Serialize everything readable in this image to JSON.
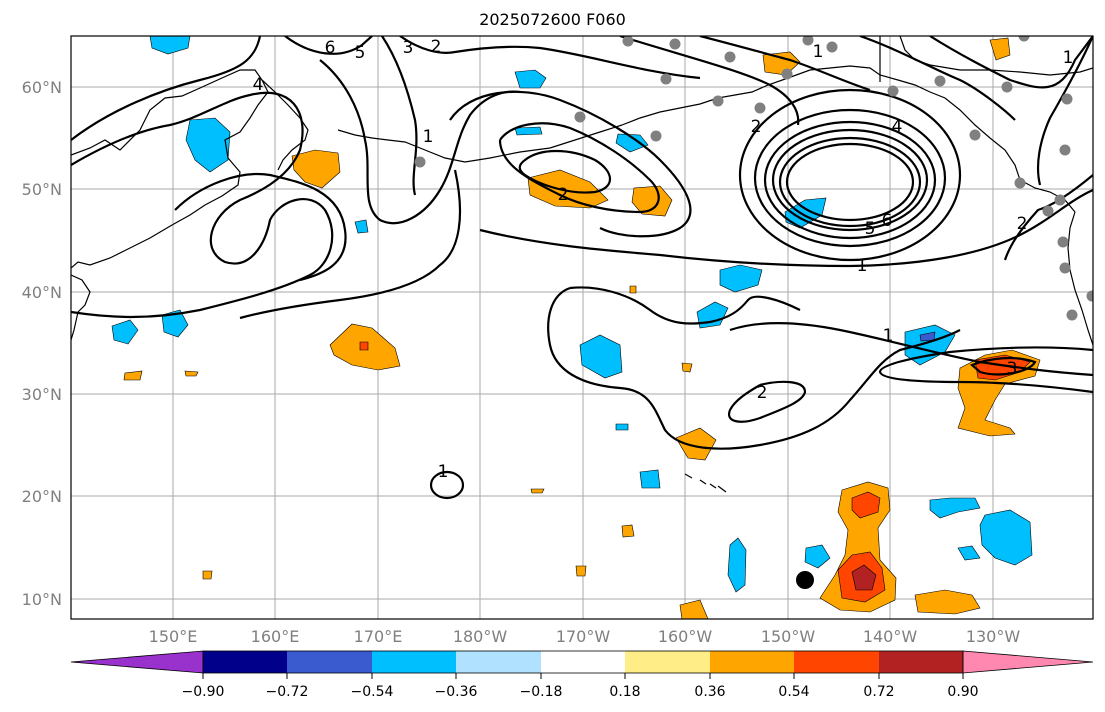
{
  "title": "2025072600 F060",
  "lat_labels": [
    "60°N",
    "50°N",
    "40°N",
    "30°N",
    "20°N",
    "10°N"
  ],
  "lon_labels": [
    "150°E",
    "160°E",
    "170°E",
    "180°W",
    "170°W",
    "160°W",
    "150°W",
    "140°W",
    "130°W"
  ],
  "colorbar": {
    "colors": [
      "#9932cc",
      "#00008b",
      "#3a5bd0",
      "#00bfff",
      "#b0e2ff",
      "#ffffff",
      "#ffee88",
      "#ffa500",
      "#ff4500",
      "#b22222",
      "#ff88b0"
    ],
    "labels": [
      "−0.90",
      "−0.72",
      "−0.54",
      "−0.36",
      "−0.18",
      "0.18",
      "0.36",
      "0.54",
      "0.72",
      "0.90"
    ]
  },
  "contour_labels": [
    "6",
    "5",
    "3",
    "2",
    "4",
    "1",
    "2",
    "1",
    "2",
    "4",
    "5",
    "6",
    "1",
    "1",
    "2",
    "3",
    "1",
    "2",
    "1"
  ],
  "colors": {
    "grid": "#aaaaaa",
    "contour": "#000000",
    "coast": "#000000",
    "station": "#808080"
  }
}
